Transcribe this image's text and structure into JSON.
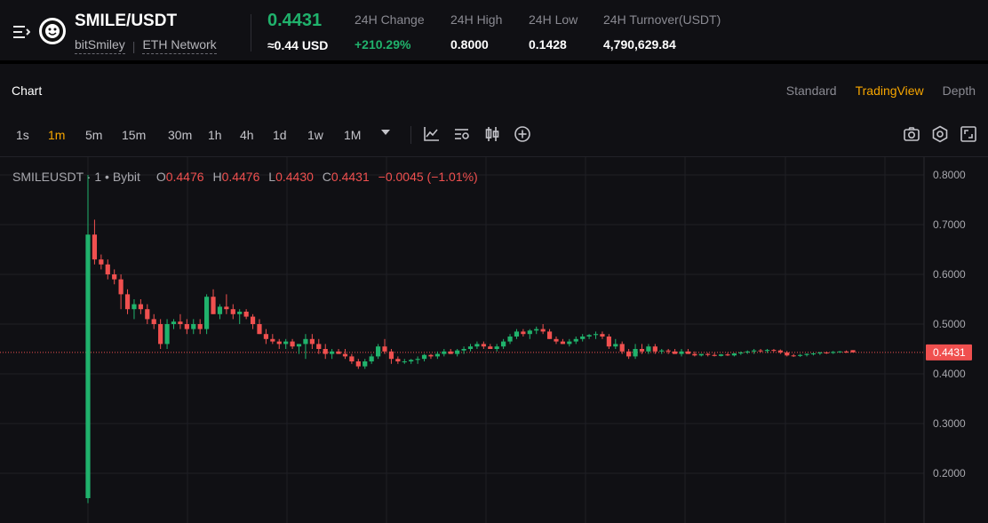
{
  "header": {
    "pair": "SMILE/USDT",
    "project": "bitSmiley",
    "network": "ETH Network",
    "last_price": "0.4431",
    "usd_price": "≈0.44 USD",
    "stats": [
      {
        "label": "24H Change",
        "value": "+210.29%",
        "positive": true
      },
      {
        "label": "24H High",
        "value": "0.8000"
      },
      {
        "label": "24H Low",
        "value": "0.1428"
      },
      {
        "label": "24H Turnover(USDT)",
        "value": "4,790,629.84"
      }
    ]
  },
  "chart_header": {
    "title": "Chart",
    "views": [
      "Standard",
      "TradingView",
      "Depth"
    ],
    "active_view": "TradingView"
  },
  "toolbar": {
    "intervals": [
      "1s",
      "1m",
      "5m",
      "15m",
      "30m",
      "1h",
      "4h",
      "1d",
      "1w",
      "1M"
    ],
    "active_interval": "1m"
  },
  "legend": {
    "symbol": "SMILEUSDT",
    "interval": "1",
    "exchange": "Bybit",
    "o_label": "O",
    "o": "0.4476",
    "h_label": "H",
    "h": "0.4476",
    "l_label": "L",
    "l": "0.4430",
    "c_label": "C",
    "c": "0.4431",
    "change": "−0.0045 (−1.01%)"
  },
  "colors": {
    "up": "#20b26c",
    "down": "#f0504f",
    "accent": "#f7a600",
    "bg": "#101014"
  },
  "chart_data": {
    "type": "candlestick",
    "y_ticks": [
      "0.8000",
      "0.7000",
      "0.6000",
      "0.5000",
      "0.4000",
      "0.3000",
      "0.2000"
    ],
    "ylim": [
      0.1,
      0.82
    ],
    "last_price_label": "0.4431",
    "candles": [
      [
        0.15,
        0.8,
        0.14,
        0.68
      ],
      [
        0.68,
        0.71,
        0.62,
        0.63
      ],
      [
        0.63,
        0.64,
        0.61,
        0.62
      ],
      [
        0.62,
        0.63,
        0.59,
        0.6
      ],
      [
        0.6,
        0.61,
        0.58,
        0.59
      ],
      [
        0.59,
        0.6,
        0.53,
        0.56
      ],
      [
        0.56,
        0.57,
        0.52,
        0.53
      ],
      [
        0.53,
        0.55,
        0.51,
        0.54
      ],
      [
        0.54,
        0.55,
        0.52,
        0.53
      ],
      [
        0.53,
        0.54,
        0.5,
        0.51
      ],
      [
        0.51,
        0.52,
        0.49,
        0.5
      ],
      [
        0.5,
        0.51,
        0.45,
        0.46
      ],
      [
        0.46,
        0.51,
        0.45,
        0.5
      ],
      [
        0.5,
        0.51,
        0.49,
        0.505
      ],
      [
        0.505,
        0.52,
        0.49,
        0.5
      ],
      [
        0.5,
        0.51,
        0.48,
        0.49
      ],
      [
        0.49,
        0.51,
        0.48,
        0.5
      ],
      [
        0.5,
        0.51,
        0.48,
        0.49
      ],
      [
        0.49,
        0.56,
        0.48,
        0.555
      ],
      [
        0.555,
        0.57,
        0.52,
        0.52
      ],
      [
        0.52,
        0.54,
        0.51,
        0.535
      ],
      [
        0.535,
        0.56,
        0.52,
        0.53
      ],
      [
        0.53,
        0.54,
        0.51,
        0.52
      ],
      [
        0.52,
        0.53,
        0.5,
        0.525
      ],
      [
        0.525,
        0.53,
        0.51,
        0.515
      ],
      [
        0.515,
        0.52,
        0.49,
        0.5
      ],
      [
        0.5,
        0.51,
        0.48,
        0.48
      ],
      [
        0.48,
        0.49,
        0.46,
        0.47
      ],
      [
        0.47,
        0.48,
        0.46,
        0.465
      ],
      [
        0.465,
        0.47,
        0.45,
        0.46
      ],
      [
        0.46,
        0.47,
        0.45,
        0.465
      ],
      [
        0.465,
        0.47,
        0.45,
        0.455
      ],
      [
        0.455,
        0.46,
        0.44,
        0.46
      ],
      [
        0.46,
        0.48,
        0.43,
        0.47
      ],
      [
        0.47,
        0.48,
        0.45,
        0.46
      ],
      [
        0.46,
        0.47,
        0.44,
        0.45
      ],
      [
        0.45,
        0.46,
        0.43,
        0.44
      ],
      [
        0.44,
        0.45,
        0.43,
        0.445
      ],
      [
        0.445,
        0.45,
        0.44,
        0.44
      ],
      [
        0.44,
        0.45,
        0.43,
        0.435
      ],
      [
        0.435,
        0.44,
        0.42,
        0.425
      ],
      [
        0.425,
        0.43,
        0.41,
        0.415
      ],
      [
        0.415,
        0.43,
        0.41,
        0.425
      ],
      [
        0.425,
        0.44,
        0.42,
        0.435
      ],
      [
        0.435,
        0.46,
        0.43,
        0.455
      ],
      [
        0.455,
        0.47,
        0.44,
        0.445
      ],
      [
        0.445,
        0.45,
        0.42,
        0.43
      ],
      [
        0.43,
        0.435,
        0.42,
        0.425
      ],
      [
        0.425,
        0.43,
        0.42,
        0.425
      ],
      [
        0.425,
        0.43,
        0.42,
        0.428
      ],
      [
        0.428,
        0.435,
        0.42,
        0.43
      ],
      [
        0.43,
        0.44,
        0.425,
        0.438
      ],
      [
        0.438,
        0.44,
        0.43,
        0.435
      ],
      [
        0.435,
        0.445,
        0.43,
        0.44
      ],
      [
        0.44,
        0.45,
        0.435,
        0.445
      ],
      [
        0.445,
        0.45,
        0.44,
        0.44
      ],
      [
        0.44,
        0.45,
        0.435,
        0.447
      ],
      [
        0.447,
        0.455,
        0.44,
        0.45
      ],
      [
        0.45,
        0.46,
        0.445,
        0.455
      ],
      [
        0.455,
        0.465,
        0.45,
        0.46
      ],
      [
        0.46,
        0.465,
        0.45,
        0.455
      ],
      [
        0.455,
        0.46,
        0.45,
        0.45
      ],
      [
        0.45,
        0.46,
        0.445,
        0.455
      ],
      [
        0.455,
        0.47,
        0.45,
        0.465
      ],
      [
        0.465,
        0.48,
        0.46,
        0.475
      ],
      [
        0.475,
        0.49,
        0.47,
        0.485
      ],
      [
        0.485,
        0.49,
        0.475,
        0.48
      ],
      [
        0.48,
        0.49,
        0.47,
        0.487
      ],
      [
        0.487,
        0.495,
        0.48,
        0.49
      ],
      [
        0.49,
        0.5,
        0.48,
        0.485
      ],
      [
        0.485,
        0.49,
        0.47,
        0.47
      ],
      [
        0.47,
        0.475,
        0.46,
        0.465
      ],
      [
        0.465,
        0.47,
        0.46,
        0.46
      ],
      [
        0.46,
        0.47,
        0.455,
        0.465
      ],
      [
        0.465,
        0.475,
        0.46,
        0.47
      ],
      [
        0.47,
        0.48,
        0.465,
        0.475
      ],
      [
        0.475,
        0.48,
        0.47,
        0.478
      ],
      [
        0.478,
        0.485,
        0.47,
        0.48
      ],
      [
        0.48,
        0.485,
        0.47,
        0.475
      ],
      [
        0.475,
        0.48,
        0.45,
        0.455
      ],
      [
        0.455,
        0.47,
        0.45,
        0.46
      ],
      [
        0.46,
        0.465,
        0.44,
        0.445
      ],
      [
        0.445,
        0.45,
        0.43,
        0.435
      ],
      [
        0.435,
        0.46,
        0.43,
        0.45
      ],
      [
        0.45,
        0.46,
        0.44,
        0.445
      ],
      [
        0.445,
        0.46,
        0.44,
        0.455
      ],
      [
        0.455,
        0.46,
        0.44,
        0.445
      ],
      [
        0.445,
        0.45,
        0.44,
        0.447
      ],
      [
        0.447,
        0.45,
        0.44,
        0.445
      ],
      [
        0.445,
        0.45,
        0.44,
        0.44
      ],
      [
        0.44,
        0.45,
        0.435,
        0.445
      ],
      [
        0.445,
        0.45,
        0.44,
        0.44
      ],
      [
        0.44,
        0.445,
        0.435,
        0.437
      ],
      [
        0.437,
        0.44,
        0.435,
        0.44
      ],
      [
        0.44,
        0.442,
        0.435,
        0.438
      ],
      [
        0.438,
        0.442,
        0.435,
        0.436
      ],
      [
        0.436,
        0.44,
        0.435,
        0.439
      ],
      [
        0.439,
        0.442,
        0.436,
        0.437
      ],
      [
        0.437,
        0.442,
        0.435,
        0.441
      ],
      [
        0.441,
        0.445,
        0.438,
        0.443
      ],
      [
        0.443,
        0.447,
        0.44,
        0.445
      ],
      [
        0.445,
        0.45,
        0.44,
        0.447
      ],
      [
        0.447,
        0.45,
        0.443,
        0.446
      ],
      [
        0.446,
        0.45,
        0.442,
        0.448
      ],
      [
        0.448,
        0.45,
        0.444,
        0.447
      ],
      [
        0.447,
        0.449,
        0.44,
        0.443
      ],
      [
        0.443,
        0.446,
        0.435,
        0.437
      ],
      [
        0.437,
        0.44,
        0.434,
        0.436
      ],
      [
        0.436,
        0.44,
        0.434,
        0.438
      ],
      [
        0.438,
        0.441,
        0.435,
        0.44
      ],
      [
        0.44,
        0.443,
        0.437,
        0.441
      ],
      [
        0.441,
        0.444,
        0.438,
        0.443
      ],
      [
        0.443,
        0.445,
        0.44,
        0.442
      ],
      [
        0.442,
        0.446,
        0.44,
        0.444
      ],
      [
        0.444,
        0.446,
        0.442,
        0.445
      ],
      [
        0.445,
        0.447,
        0.442,
        0.443
      ],
      [
        0.4476,
        0.4476,
        0.443,
        0.4431
      ]
    ]
  }
}
